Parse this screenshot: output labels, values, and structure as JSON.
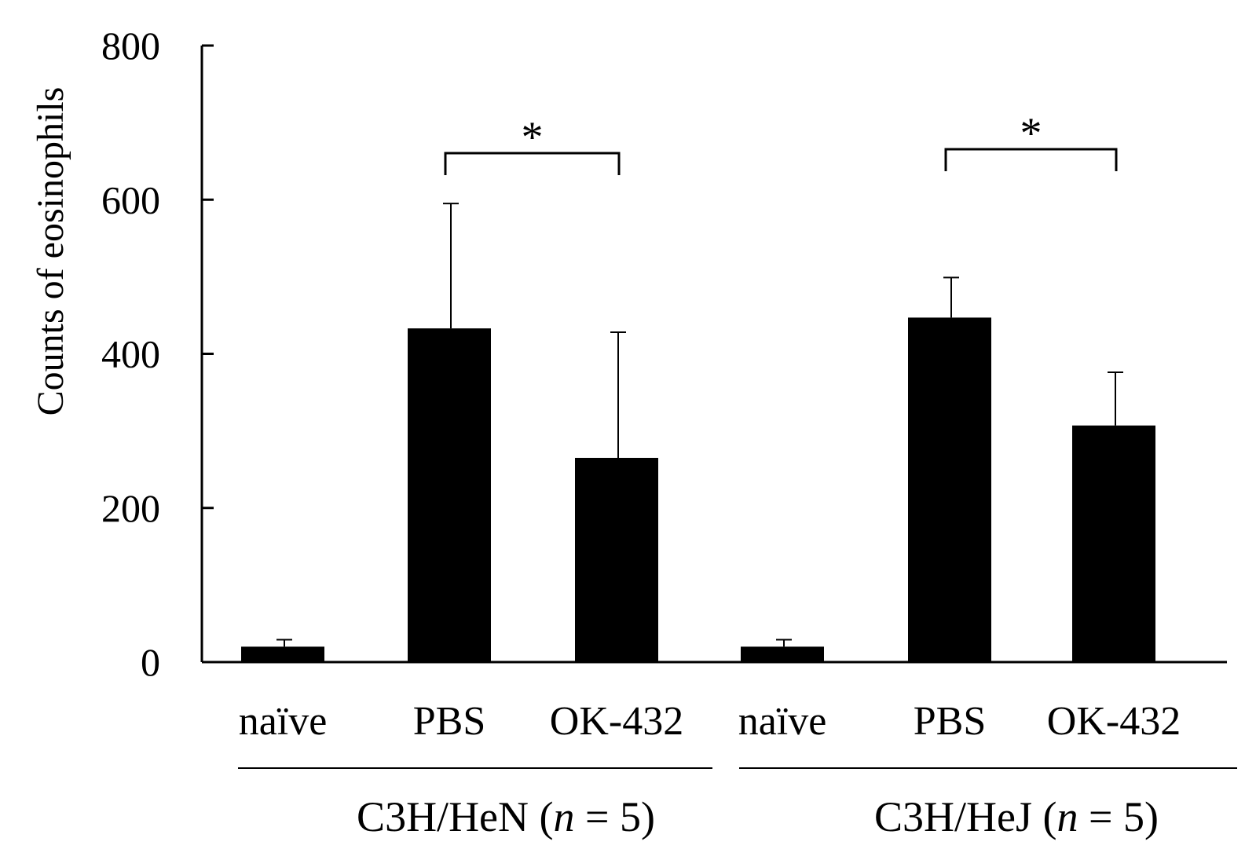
{
  "chart_data": {
    "type": "bar",
    "title": "",
    "xlabel": "",
    "ylabel": "Counts of eosinophils",
    "ylim": [
      0,
      800
    ],
    "yticks": [
      "0",
      "200",
      "400",
      "600",
      "800"
    ],
    "grid": false,
    "legend": "none",
    "bar_color": "#000000",
    "categories": [
      "naïve",
      "PBS",
      "OK-432",
      "naïve",
      "PBS",
      "OK-432"
    ],
    "values": [
      20,
      433,
      265,
      20,
      447,
      307
    ],
    "errors": [
      9,
      162,
      163,
      9,
      52,
      69
    ],
    "groups": [
      {
        "label_main": "C3H/HeN (",
        "label_italic": "n",
        "label_tail": " = 5)",
        "indices": [
          0,
          1,
          2
        ]
      },
      {
        "label_main": "C3H/HeJ (",
        "label_italic": "n",
        "label_tail": " = 5)",
        "indices": [
          3,
          4,
          5
        ]
      }
    ],
    "significance": [
      {
        "from": 1,
        "to": 2,
        "label": "*"
      },
      {
        "from": 4,
        "to": 5,
        "label": "*"
      }
    ]
  }
}
